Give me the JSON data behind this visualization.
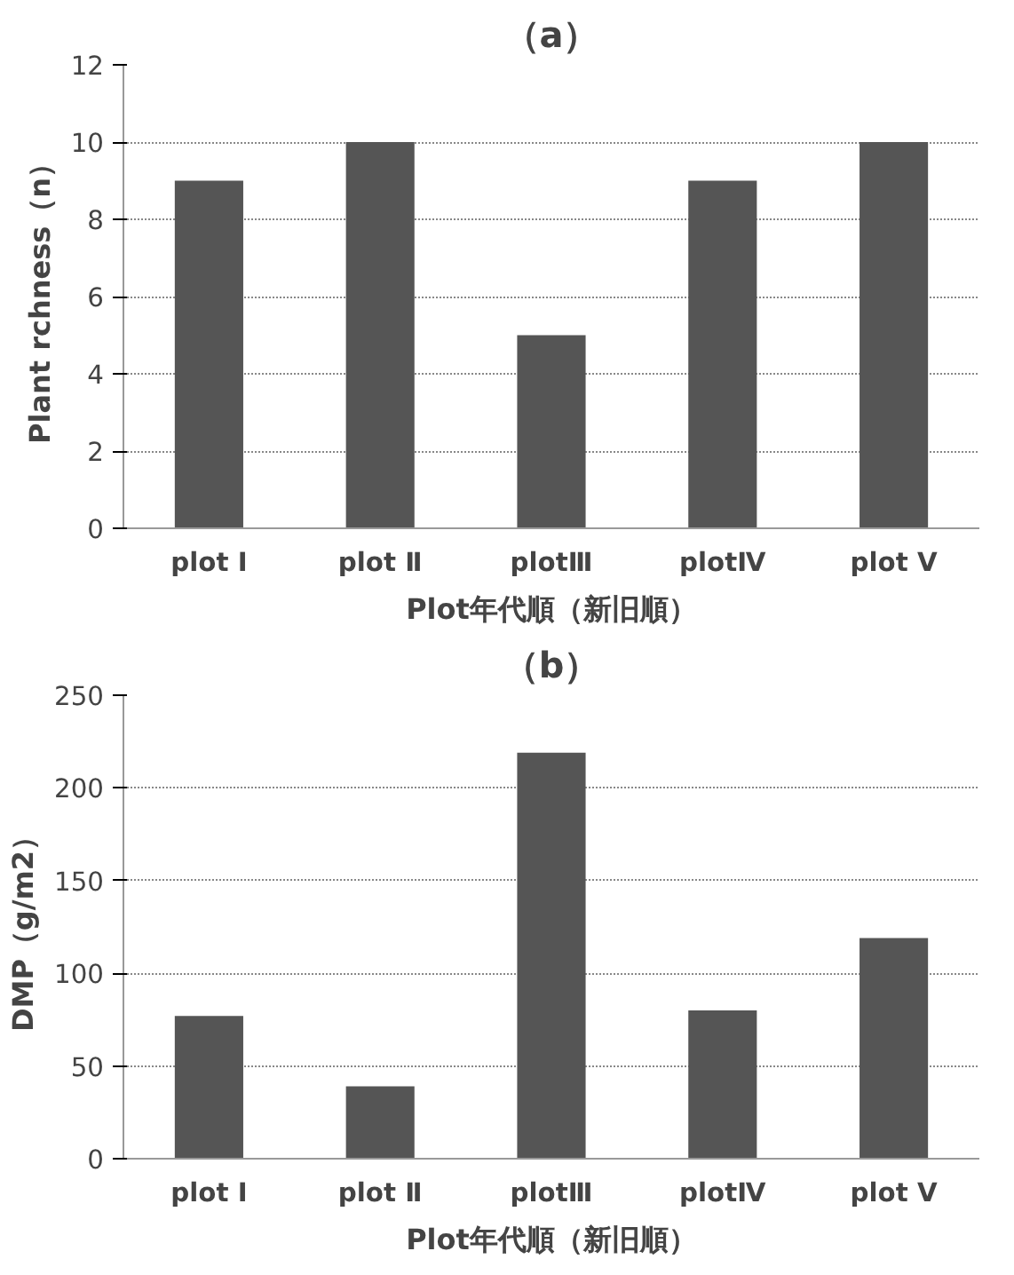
{
  "chart_data": [
    {
      "type": "bar",
      "title": "（a）",
      "xlabel": "Plot年代順（新旧順）",
      "ylabel": "Plant rchness（n）",
      "categories": [
        "plot Ⅰ",
        "plot Ⅱ",
        "plotⅢ",
        "plotⅣ",
        "plot Ⅴ"
      ],
      "values": [
        9,
        10,
        5,
        9,
        10
      ],
      "color": "#555555",
      "ylim": [
        0,
        12
      ],
      "yticks": [
        0,
        2,
        4,
        6,
        8,
        10,
        12
      ],
      "grid": "y"
    },
    {
      "type": "bar",
      "title": "（b）",
      "xlabel": "Plot年代順（新旧順）",
      "ylabel": "DMP（g/m2）",
      "categories": [
        "plot Ⅰ",
        "plot Ⅱ",
        "plotⅢ",
        "plotⅣ",
        "plot Ⅴ"
      ],
      "values": [
        77,
        39,
        219,
        80,
        119
      ],
      "color": "#555555",
      "ylim": [
        0,
        250
      ],
      "yticks": [
        0,
        50,
        100,
        150,
        200,
        250
      ],
      "grid": "y"
    }
  ]
}
